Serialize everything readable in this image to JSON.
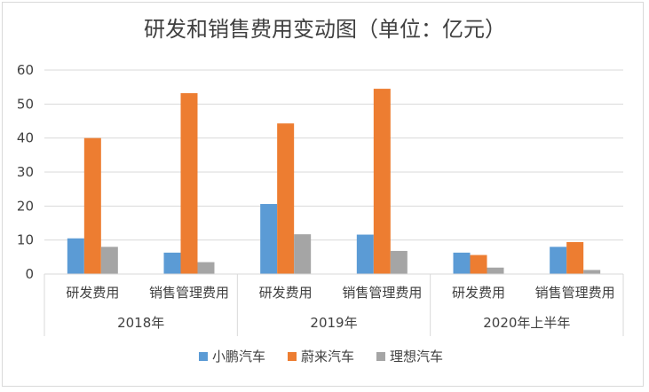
{
  "chart_data": {
    "type": "bar",
    "title": "研发和销售费用变动图（单位：亿元）",
    "xlabel": "",
    "ylabel": "",
    "ylim": [
      0,
      60
    ],
    "yticks": [
      0,
      10,
      20,
      30,
      40,
      50,
      60
    ],
    "grid": true,
    "legend_position": "bottom",
    "groups": [
      {
        "label": "2018年",
        "categories": [
          "研发费用",
          "销售管理费用"
        ]
      },
      {
        "label": "2019年",
        "categories": [
          "研发费用",
          "销售管理费用"
        ]
      },
      {
        "label": "2020年上半年",
        "categories": [
          "研发费用",
          "销售管理费用"
        ]
      }
    ],
    "series": [
      {
        "name": "小鹏汽车",
        "color": "#5b9bd5",
        "values": [
          10.5,
          6.3,
          20.6,
          11.6,
          6.3,
          8.0
        ]
      },
      {
        "name": "蔚来汽车",
        "color": "#ed7d31",
        "values": [
          40.0,
          53.2,
          44.3,
          54.5,
          5.6,
          9.4
        ]
      },
      {
        "name": "理想汽车",
        "color": "#a5a5a5",
        "values": [
          8.0,
          3.5,
          11.7,
          6.8,
          1.9,
          1.2
        ]
      }
    ]
  }
}
